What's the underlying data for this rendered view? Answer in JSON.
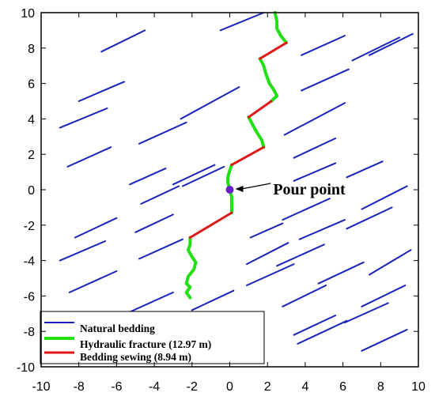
{
  "chart_data": {
    "type": "line",
    "xlim": [
      -10,
      10
    ],
    "ylim": [
      -10,
      10
    ],
    "x_ticks": [
      "-10",
      "-8",
      "-6",
      "-4",
      "-2",
      "0",
      "2",
      "4",
      "6",
      "8",
      "10"
    ],
    "y_ticks": [
      "-10",
      "-8",
      "-6",
      "-4",
      "-2",
      "0",
      "2",
      "4",
      "6",
      "8",
      "10"
    ],
    "grid": false,
    "legend_position": "bottom-left",
    "colors": {
      "bedding": "#1a23b8",
      "fracture": "#22e014",
      "sewing": "#e01818",
      "pour_point": "#6a1fc4"
    },
    "series": [
      {
        "name": "Natural bedding",
        "segments": [
          [
            [
              -6.8,
              7.8
            ],
            [
              -4.5,
              9.0
            ]
          ],
          [
            [
              -0.5,
              9.0
            ],
            [
              1.8,
              10.0
            ]
          ],
          [
            [
              3.8,
              7.6
            ],
            [
              6.1,
              8.7
            ]
          ],
          [
            [
              6.5,
              7.3
            ],
            [
              9.0,
              8.6
            ]
          ],
          [
            [
              7.4,
              7.6
            ],
            [
              9.7,
              8.8
            ]
          ],
          [
            [
              -8.0,
              5.0
            ],
            [
              -5.6,
              6.1
            ]
          ],
          [
            [
              -2.6,
              4.0
            ],
            [
              0.5,
              5.8
            ]
          ],
          [
            [
              3.8,
              5.6
            ],
            [
              6.3,
              6.8
            ]
          ],
          [
            [
              -9.0,
              3.5
            ],
            [
              -6.5,
              4.6
            ]
          ],
          [
            [
              -4.8,
              2.6
            ],
            [
              -2.3,
              3.8
            ]
          ],
          [
            [
              2.9,
              3.1
            ],
            [
              6.1,
              4.9
            ]
          ],
          [
            [
              -8.6,
              1.3
            ],
            [
              -6.3,
              2.4
            ]
          ],
          [
            [
              -3.0,
              0.3
            ],
            [
              -0.8,
              1.4
            ]
          ],
          [
            [
              3.4,
              1.8
            ],
            [
              5.6,
              2.9
            ]
          ],
          [
            [
              -5.3,
              0.3
            ],
            [
              -3.4,
              1.2
            ]
          ],
          [
            [
              -2.5,
              0.2
            ],
            [
              -0.3,
              1.3
            ]
          ],
          [
            [
              3.4,
              0.5
            ],
            [
              5.6,
              1.5
            ]
          ],
          [
            [
              6.2,
              0.7
            ],
            [
              8.1,
              1.6
            ]
          ],
          [
            [
              -4.7,
              -0.8
            ],
            [
              -2.7,
              0.2
            ]
          ],
          [
            [
              2.8,
              -1.7
            ],
            [
              5.3,
              -0.5
            ]
          ],
          [
            [
              7.0,
              -1.1
            ],
            [
              9.4,
              0.2
            ]
          ],
          [
            [
              -8.2,
              -2.7
            ],
            [
              -6.0,
              -1.6
            ]
          ],
          [
            [
              -5.0,
              -2.4
            ],
            [
              -3.0,
              -1.4
            ]
          ],
          [
            [
              1.1,
              -2.7
            ],
            [
              2.8,
              -1.9
            ]
          ],
          [
            [
              3.7,
              -2.8
            ],
            [
              6.1,
              -1.7
            ]
          ],
          [
            [
              6.2,
              -2.2
            ],
            [
              8.6,
              -1.0
            ]
          ],
          [
            [
              -9.0,
              -4.0
            ],
            [
              -6.6,
              -2.9
            ]
          ],
          [
            [
              -4.8,
              -3.9
            ],
            [
              -2.5,
              -2.8
            ]
          ],
          [
            [
              0.9,
              -4.2
            ],
            [
              3.1,
              -3.0
            ]
          ],
          [
            [
              2.5,
              -4.3
            ],
            [
              5.0,
              -3.1
            ]
          ],
          [
            [
              -8.5,
              -5.8
            ],
            [
              -6.0,
              -4.6
            ]
          ],
          [
            [
              0.9,
              -5.4
            ],
            [
              3.4,
              -4.2
            ]
          ],
          [
            [
              4.7,
              -5.3
            ],
            [
              7.1,
              -4.1
            ]
          ],
          [
            [
              7.4,
              -4.8
            ],
            [
              9.6,
              -3.4
            ]
          ],
          [
            [
              -2.0,
              -6.8
            ],
            [
              0.2,
              -5.7
            ]
          ],
          [
            [
              2.8,
              -6.6
            ],
            [
              5.1,
              -5.4
            ]
          ],
          [
            [
              7.0,
              -6.6
            ],
            [
              9.3,
              -5.4
            ]
          ],
          [
            [
              -5.3,
              -6.9
            ],
            [
              -3.0,
              -5.8
            ]
          ],
          [
            [
              3.4,
              -8.2
            ],
            [
              5.6,
              -7.1
            ]
          ],
          [
            [
              6.1,
              -7.5
            ],
            [
              8.4,
              -6.4
            ]
          ],
          [
            [
              3.6,
              -8.7
            ],
            [
              6.2,
              -7.4
            ]
          ],
          [
            [
              7.0,
              -9.1
            ],
            [
              9.4,
              -7.9
            ]
          ]
        ]
      },
      {
        "name": "Hydraulic fracture (12.97 m)",
        "segments": [
          [
            [
              2.4,
              10.0
            ],
            [
              2.5,
              9.5
            ],
            [
              2.5,
              9.1
            ],
            [
              2.7,
              8.7
            ],
            [
              3.0,
              8.3
            ]
          ],
          [
            [
              1.6,
              7.4
            ],
            [
              1.8,
              7.0
            ],
            [
              1.9,
              6.6
            ],
            [
              2.0,
              6.3
            ],
            [
              2.1,
              6.0
            ],
            [
              2.3,
              5.7
            ],
            [
              2.5,
              5.3
            ],
            [
              2.2,
              5.0
            ]
          ],
          [
            [
              1.0,
              4.1
            ],
            [
              1.2,
              3.7
            ],
            [
              1.4,
              3.3
            ],
            [
              1.7,
              2.8
            ],
            [
              1.8,
              2.4
            ]
          ],
          [
            [
              0.1,
              1.4
            ],
            [
              0.0,
              1.1
            ],
            [
              -0.1,
              0.7
            ],
            [
              -0.1,
              0.4
            ],
            [
              0.0,
              0.0
            ],
            [
              0.1,
              -0.4
            ],
            [
              0.1,
              -0.8
            ],
            [
              0.1,
              -1.3
            ]
          ],
          [
            [
              -2.1,
              -2.7
            ],
            [
              -2.1,
              -3.1
            ],
            [
              -2.2,
              -3.4
            ],
            [
              -2.0,
              -3.8
            ],
            [
              -1.8,
              -4.1
            ],
            [
              -1.9,
              -4.5
            ],
            [
              -2.2,
              -4.9
            ],
            [
              -2.3,
              -5.3
            ],
            [
              -2.1,
              -5.5
            ],
            [
              -2.3,
              -5.8
            ],
            [
              -2.1,
              -6.1
            ]
          ]
        ]
      },
      {
        "name": "Bedding sewing (8.94 m)",
        "segments": [
          [
            [
              1.6,
              7.4
            ],
            [
              3.0,
              8.3
            ]
          ],
          [
            [
              1.0,
              4.1
            ],
            [
              2.2,
              5.0
            ]
          ],
          [
            [
              0.1,
              1.4
            ],
            [
              1.8,
              2.4
            ]
          ],
          [
            [
              -2.1,
              -2.7
            ],
            [
              0.1,
              -1.3
            ]
          ]
        ]
      }
    ],
    "legend": [
      {
        "label": "Natural bedding",
        "series": "Natural bedding"
      },
      {
        "label": "Hydraulic fracture (12.97 m)",
        "series": "Hydraulic fracture (12.97 m)"
      },
      {
        "label": "Bedding sewing (8.94 m)",
        "series": "Bedding sewing (8.94 m)"
      }
    ],
    "annotations": [
      {
        "text": "Pour point",
        "point": [
          0.0,
          0.0
        ],
        "text_at": [
          2.3,
          0.0
        ]
      }
    ]
  }
}
